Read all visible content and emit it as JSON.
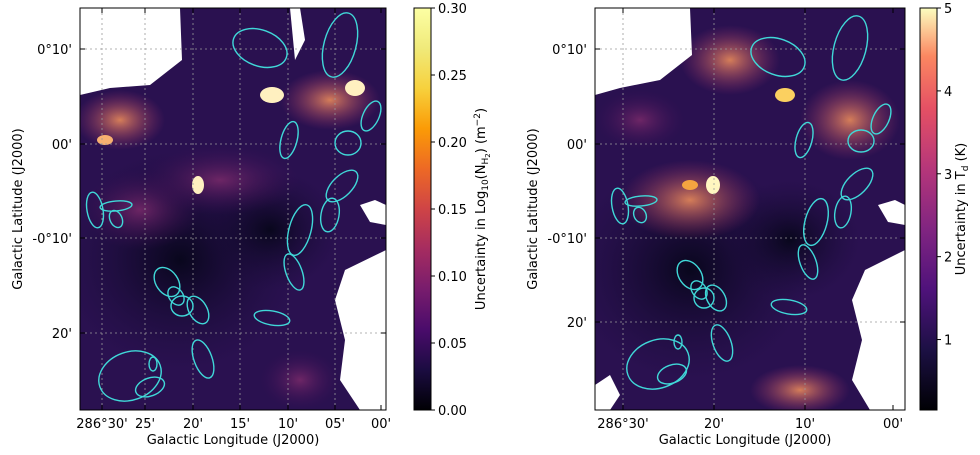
{
  "chart_data": [
    {
      "type": "heatmap",
      "title": "",
      "xlabel": "Galactic Longitude (J2000)",
      "ylabel": "Galactic Latitude (J2000)",
      "x_ticks": [
        "286°30'",
        "25'",
        "20'",
        "15'",
        "10'",
        "05'",
        "00'"
      ],
      "y_ticks": [
        "0°10'",
        "00'",
        "-0°10'",
        "20'"
      ],
      "colorbar": {
        "label": "Uncertainty in Log10(N_H2) (m^-2)",
        "label_prefix": "Uncertainty in Log",
        "label_sub1": "10",
        "label_mid": "(N",
        "label_sub2": "H",
        "label_sub3": "2",
        "label_suffix": ") (m",
        "label_sup": "−2",
        "label_end": ")",
        "ticks": [
          "0.00",
          "0.05",
          "0.10",
          "0.15",
          "0.20",
          "0.25",
          "0.30"
        ],
        "range": [
          0,
          0.3
        ],
        "colormap": "inferno"
      },
      "regions": "cyan ellipses marking clumps",
      "ellipse_color": "#40d8d8"
    },
    {
      "type": "heatmap",
      "title": "",
      "xlabel": "Galactic Longitude (J2000)",
      "ylabel": "Galactic Latitude (J2000)",
      "x_ticks": [
        "286°30'",
        "20'",
        "10'",
        "00'"
      ],
      "y_ticks": [
        "0°10'",
        "00'",
        "-0°10'",
        "20'"
      ],
      "colorbar": {
        "label": "Uncertainty in T_d (K)",
        "label_prefix": "Uncertainty in T",
        "label_sub1": "d",
        "label_end": " (K)",
        "ticks": [
          "1",
          "2",
          "3",
          "4",
          "5"
        ],
        "range": [
          0.15,
          5
        ],
        "colormap": "inferno"
      },
      "regions": "cyan ellipses marking clumps",
      "ellipse_color": "#40d8d8"
    }
  ]
}
